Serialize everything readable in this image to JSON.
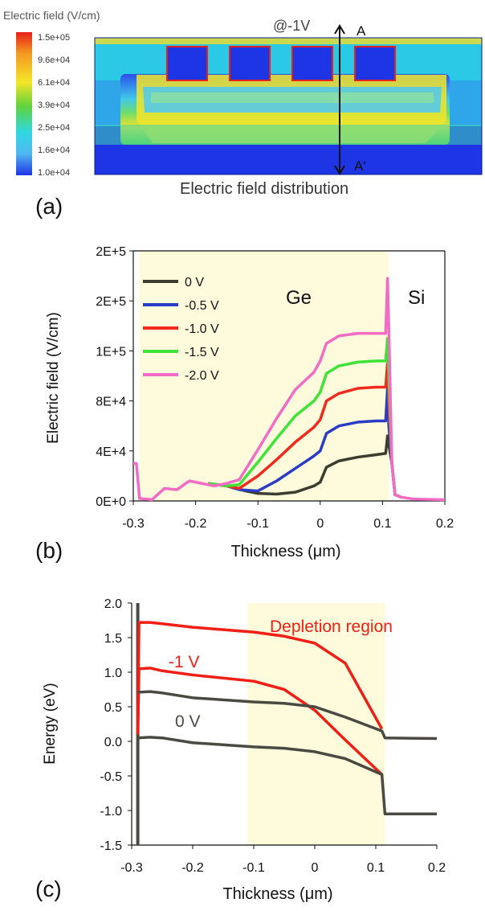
{
  "panel_a": {
    "legend_title": "Electric field (V/cm)",
    "legend_ticks": [
      "1.5e+05",
      "9.6e+04",
      "6.1e+04",
      "3.9e+04",
      "2.5e+04",
      "1.6e+04",
      "1.0e+04"
    ],
    "bias_label": "@-1V",
    "cut_top": "A",
    "cut_bottom": "A'",
    "caption": "Electric field distribution",
    "panel_label": "(a)",
    "colors": {
      "red": "#e8201a",
      "orange": "#f39a1f",
      "yellow": "#f4e628",
      "green": "#5fd23c",
      "cyan": "#2fd9e3",
      "lightblue": "#4fb7f2",
      "blue": "#1e35e6"
    }
  },
  "panel_b": {
    "panel_label": "(b)",
    "ylabel": "Electric field (V/cm)",
    "xlabel": "Thickness (μm)",
    "yticks": [
      "2E+5",
      "2E+5",
      "1E+5",
      "8E+4",
      "4E+4",
      "0E+0"
    ],
    "xticks": [
      "-0.3",
      "-0.2",
      "-0.1",
      "0",
      "0.1",
      "0.2"
    ],
    "ge_label": "Ge",
    "si_label": "Si",
    "shade_color": "#fdfbdc"
  },
  "panel_c": {
    "panel_label": "(c)",
    "ylabel": "Energy (eV)",
    "xlabel": "Thickness (μm)",
    "yticks": [
      "2.0",
      "1.5",
      "1.0",
      "0.5",
      "0.0",
      "-0.5",
      "-1.0",
      "-1.5"
    ],
    "xticks": [
      "-0.3",
      "-0.2",
      "-0.1",
      "0",
      "0.1",
      "0.2"
    ],
    "depletion_label": "Depletion region",
    "minus1_label": "-1 V",
    "zero_label": "0 V",
    "shade_color": "#fdfbdc"
  },
  "chart_data": [
    {
      "type": "line",
      "xlabel": "Thickness (μm)",
      "ylabel": "Electric field (V/cm)",
      "xlim": [
        -0.3,
        0.2
      ],
      "ylim": [
        0,
        200000
      ],
      "grid": false,
      "legend": "top-left",
      "series": [
        {
          "name": "0 V",
          "color": "#3c3c30",
          "x": [
            -0.18,
            -0.15,
            -0.12,
            -0.1,
            -0.07,
            -0.04,
            -0.01,
            0.0,
            0.01,
            0.03,
            0.06,
            0.09,
            0.105,
            0.108,
            0.11,
            0.115,
            0.12,
            0.13
          ],
          "y": [
            14000,
            12000,
            8000,
            6000,
            5500,
            7000,
            12000,
            15000,
            27000,
            32000,
            35000,
            37000,
            38000,
            52000,
            45000,
            30000,
            5000,
            3000
          ]
        },
        {
          "name": "-0.5 V",
          "color": "#2b3cc7",
          "x": [
            -0.18,
            -0.15,
            -0.13,
            -0.1,
            -0.07,
            -0.04,
            -0.01,
            0.0,
            0.01,
            0.03,
            0.06,
            0.09,
            0.105,
            0.108,
            0.11,
            0.115,
            0.12,
            0.13
          ],
          "y": [
            14000,
            12000,
            9000,
            8000,
            16000,
            26000,
            36000,
            40000,
            54000,
            60000,
            63000,
            64000,
            64000,
            90000,
            60000,
            30000,
            5000,
            3000
          ]
        },
        {
          "name": "-1.0 V",
          "color": "#f02a1e",
          "x": [
            -0.18,
            -0.15,
            -0.13,
            -0.1,
            -0.07,
            -0.04,
            -0.01,
            0.0,
            0.01,
            0.03,
            0.06,
            0.09,
            0.105,
            0.108,
            0.11,
            0.115,
            0.12,
            0.13
          ],
          "y": [
            14000,
            12000,
            10000,
            20000,
            33000,
            47000,
            59000,
            65000,
            80000,
            86000,
            90000,
            91000,
            91000,
            110000,
            80000,
            30000,
            5000,
            3000
          ]
        },
        {
          "name": "-1.5 V",
          "color": "#3fe337",
          "x": [
            -0.18,
            -0.15,
            -0.13,
            -0.1,
            -0.07,
            -0.04,
            -0.01,
            0.0,
            0.01,
            0.03,
            0.06,
            0.09,
            0.105,
            0.108,
            0.11,
            0.115,
            0.12,
            0.13
          ],
          "y": [
            14000,
            12000,
            13000,
            31000,
            50000,
            68000,
            80000,
            87000,
            102000,
            108000,
            111000,
            112000,
            112000,
            130000,
            100000,
            30000,
            5000,
            3000
          ]
        },
        {
          "name": "-2.0 V",
          "color": "#f26bc5",
          "x": [
            -0.3,
            -0.295,
            -0.29,
            -0.27,
            -0.25,
            -0.23,
            -0.21,
            -0.19,
            -0.17,
            -0.15,
            -0.13,
            -0.1,
            -0.07,
            -0.04,
            -0.01,
            0.0,
            0.01,
            0.03,
            0.06,
            0.09,
            0.105,
            0.108,
            0.11,
            0.115,
            0.12,
            0.13,
            0.15,
            0.2
          ],
          "y": [
            30000,
            30000,
            2000,
            1000,
            10000,
            9000,
            16000,
            14000,
            12000,
            14000,
            17000,
            41000,
            66000,
            89000,
            103000,
            112000,
            126000,
            132000,
            134000,
            134000,
            134000,
            178000,
            140000,
            30000,
            5000,
            3000,
            1500,
            1000
          ]
        }
      ]
    },
    {
      "type": "line",
      "xlabel": "Thickness (μm)",
      "ylabel": "Energy (eV)",
      "xlim": [
        -0.3,
        0.2
      ],
      "ylim": [
        -1.5,
        2.0
      ],
      "grid": false,
      "series": [
        {
          "color": "#f01e14",
          "x": [
            -0.29,
            -0.288,
            -0.27,
            -0.25,
            -0.2,
            -0.1,
            -0.05,
            0.0,
            0.05,
            0.11
          ],
          "y": [
            0.1,
            1.72,
            1.72,
            1.7,
            1.65,
            1.58,
            1.52,
            1.42,
            1.13,
            0.18
          ]
        },
        {
          "color": "#f01e14",
          "x": [
            -0.29,
            -0.288,
            -0.27,
            -0.25,
            -0.2,
            -0.1,
            -0.05,
            0.0,
            0.05,
            0.11
          ],
          "y": [
            0.1,
            1.05,
            1.06,
            1.02,
            0.96,
            0.87,
            0.75,
            0.45,
            0.02,
            -0.48
          ]
        },
        {
          "color": "#4a4a42",
          "x": [
            -0.29,
            -0.27,
            -0.25,
            -0.2,
            -0.1,
            -0.05,
            0.0,
            0.05,
            0.11,
            0.115,
            0.2
          ],
          "y": [
            0.71,
            0.72,
            0.7,
            0.63,
            0.57,
            0.55,
            0.5,
            0.35,
            0.15,
            0.05,
            0.04
          ]
        },
        {
          "color": "#4a4a42",
          "x": [
            -0.29,
            -0.27,
            -0.25,
            -0.2,
            -0.1,
            -0.05,
            0.0,
            0.05,
            0.11,
            0.115,
            0.2
          ],
          "y": [
            0.05,
            0.06,
            0.05,
            -0.02,
            -0.08,
            -0.1,
            -0.15,
            -0.25,
            -0.48,
            -1.05,
            -1.05
          ]
        }
      ]
    }
  ]
}
